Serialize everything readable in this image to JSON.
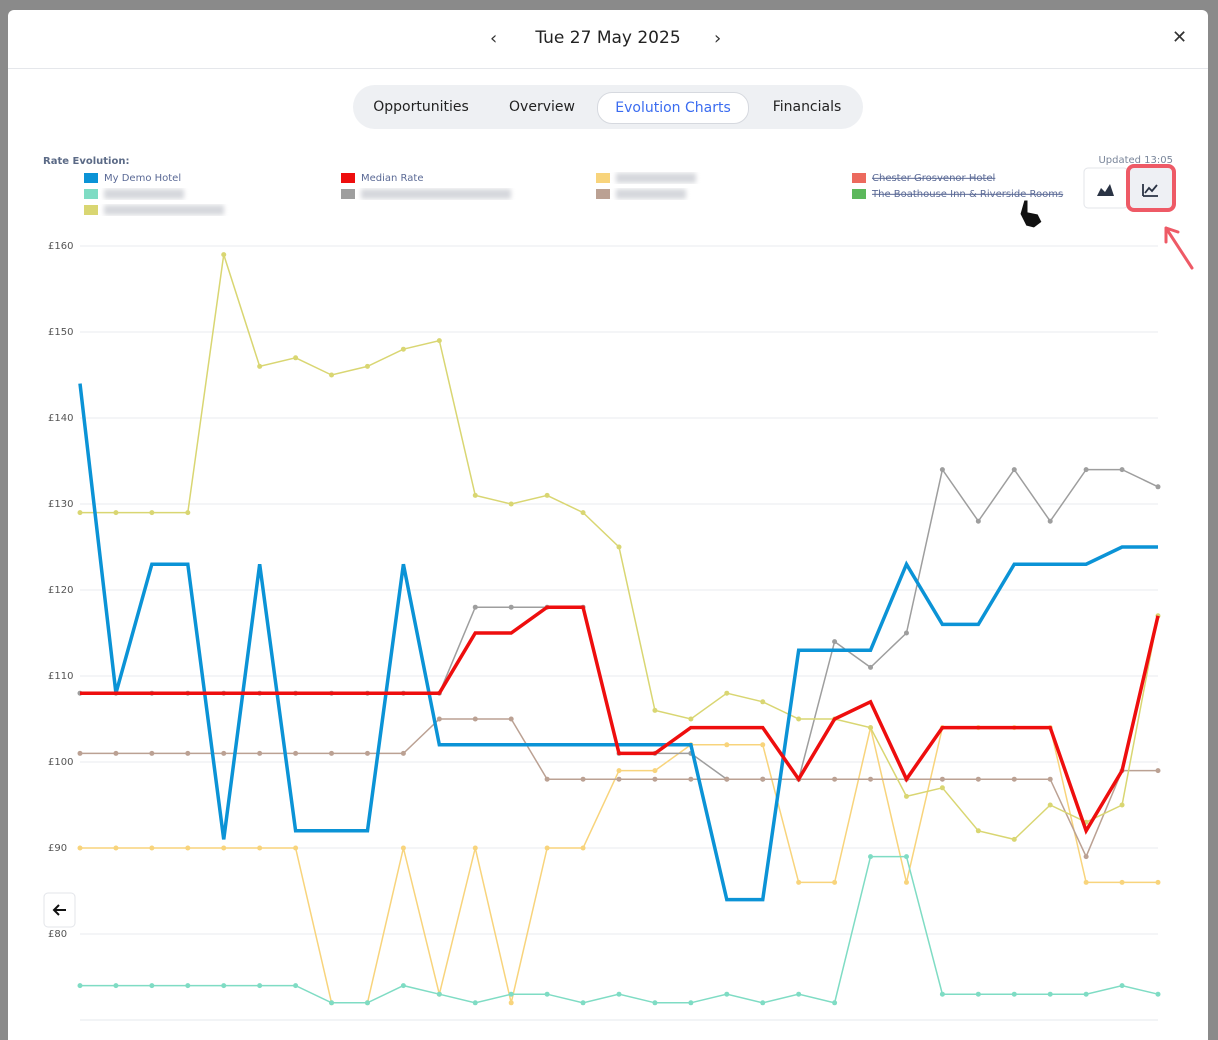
{
  "header": {
    "date": "Tue 27 May 2025"
  },
  "tabs": [
    "Opportunities",
    "Overview",
    "Evolution Charts",
    "Financials"
  ],
  "chart_data": {
    "type": "line",
    "title": "Rate Evolution:",
    "subtitle": "Updated 13:05",
    "categories": [
      null,
      null,
      null,
      null,
      null,
      null,
      null,
      null,
      null,
      null,
      null,
      null,
      null,
      null,
      null,
      null,
      null,
      null,
      null,
      null,
      null,
      null,
      null,
      null,
      null,
      null,
      null,
      null,
      null,
      null,
      null
    ],
    "series": [
      {
        "name": "My Demo Hotel",
        "color": "#0b93d6",
        "values": [
          144,
          108,
          123,
          123,
          91,
          123,
          92,
          92,
          92,
          123,
          102,
          102,
          102,
          102,
          102,
          102,
          102,
          102,
          84,
          84,
          113,
          113,
          113,
          123,
          116,
          116,
          123,
          123,
          123,
          125,
          125
        ]
      },
      {
        "name": "Median Rate",
        "color": "#ee0e0e",
        "values": [
          108,
          108,
          108,
          108,
          108,
          108,
          108,
          108,
          108,
          108,
          108,
          115,
          115,
          118,
          118,
          101,
          101,
          104,
          104,
          104,
          98,
          105,
          107,
          98,
          104,
          104,
          104,
          104,
          92,
          99,
          117
        ]
      },
      {
        "name": null,
        "color": "#f8d47c",
        "values": [
          90,
          90,
          90,
          90,
          90,
          90,
          90,
          72,
          72,
          90,
          73,
          90,
          72,
          90,
          90,
          99,
          99,
          102,
          102,
          102,
          86,
          86,
          104,
          86,
          104,
          104,
          104,
          104,
          86,
          86,
          86
        ]
      },
      {
        "name": "Chester Grosvenor Hotel",
        "color": "#ec6a5e",
        "hidden": true,
        "values": [
          null,
          null,
          null,
          null,
          null,
          null,
          null,
          null,
          null,
          null,
          null,
          null,
          null,
          null,
          null,
          null,
          null,
          null,
          null,
          null,
          null,
          null,
          null,
          null,
          null,
          null,
          null,
          null,
          null,
          null,
          null
        ]
      },
      {
        "name": null,
        "color": "#7fdcc4",
        "values": [
          74,
          74,
          74,
          74,
          74,
          74,
          74,
          72,
          72,
          74,
          73,
          72,
          73,
          73,
          72,
          73,
          72,
          72,
          73,
          72,
          73,
          72,
          89,
          89,
          73,
          73,
          73,
          73,
          73,
          74,
          73
        ]
      },
      {
        "name": null,
        "color": "#9e9e9e",
        "values": [
          108,
          108,
          108,
          108,
          108,
          108,
          108,
          108,
          108,
          108,
          108,
          118,
          118,
          118,
          118,
          101,
          101,
          101,
          98,
          98,
          98,
          114,
          111,
          115,
          134,
          128,
          134,
          128,
          134,
          134,
          132
        ]
      },
      {
        "name": null,
        "color": "#bba193",
        "values": [
          101,
          101,
          101,
          101,
          101,
          101,
          101,
          101,
          101,
          101,
          105,
          105,
          105,
          98,
          98,
          98,
          98,
          98,
          98,
          98,
          98,
          98,
          98,
          98,
          98,
          98,
          98,
          98,
          89,
          99,
          99
        ]
      },
      {
        "name": "The Boathouse Inn & Riverside Rooms",
        "color": "#5cb85c",
        "hidden": true,
        "values": [
          null,
          null,
          null,
          null,
          null,
          null,
          null,
          null,
          null,
          null,
          null,
          null,
          null,
          null,
          null,
          null,
          null,
          null,
          null,
          null,
          null,
          null,
          null,
          null,
          null,
          null,
          null,
          null,
          null,
          null,
          null
        ]
      },
      {
        "name": null,
        "color": "#d9d672",
        "values": [
          129,
          129,
          129,
          129,
          159,
          146,
          147,
          145,
          146,
          148,
          149,
          131,
          130,
          131,
          129,
          125,
          106,
          105,
          108,
          107,
          105,
          105,
          104,
          96,
          97,
          92,
          91,
          95,
          93,
          95,
          117
        ]
      }
    ],
    "ylim": [
      70,
      160
    ],
    "yticks": [
      {
        "value": 80,
        "label": "£80"
      },
      {
        "value": 90,
        "label": "£90"
      },
      {
        "value": 100,
        "label": "£100"
      },
      {
        "value": 110,
        "label": "£110"
      },
      {
        "value": 120,
        "label": "£120"
      },
      {
        "value": 130,
        "label": "£130"
      },
      {
        "value": 140,
        "label": "£140"
      },
      {
        "value": 150,
        "label": "£150"
      },
      {
        "value": 160,
        "label": "£160"
      }
    ],
    "grid": true
  }
}
